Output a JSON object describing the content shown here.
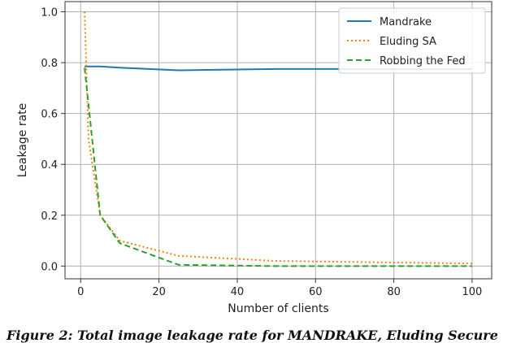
{
  "chart_data": {
    "type": "line",
    "xlabel": "Number of clients",
    "ylabel": "Leakage rate",
    "xlim": [
      -4,
      105
    ],
    "ylim": [
      -0.05,
      1.04
    ],
    "xticks": [
      0,
      20,
      40,
      60,
      80,
      100
    ],
    "yticks": [
      0.0,
      0.2,
      0.4,
      0.6,
      0.8,
      1.0
    ],
    "grid": true,
    "legend_position": "top-right",
    "series": [
      {
        "name": "Mandrake",
        "color": "#1f77b4",
        "style": "solid",
        "x": [
          1,
          5,
          10,
          25,
          50,
          100
        ],
        "y": [
          0.785,
          0.785,
          0.78,
          0.77,
          0.775,
          0.775
        ]
      },
      {
        "name": "Eluding SA",
        "color": "#ff7f0e",
        "style": "dotted",
        "x": [
          1,
          2,
          5,
          10,
          25,
          50,
          100
        ],
        "y": [
          1.0,
          0.5,
          0.2,
          0.1,
          0.04,
          0.02,
          0.01
        ]
      },
      {
        "name": "Robbing the Fed",
        "color": "#2ca02c",
        "style": "dashed",
        "x": [
          1,
          5,
          10,
          25,
          50,
          100
        ],
        "y": [
          0.78,
          0.2,
          0.09,
          0.005,
          0.0,
          0.0
        ]
      }
    ]
  },
  "caption": "Figure 2:  Total image leakage rate for MANDRAKE, Eluding Secure"
}
